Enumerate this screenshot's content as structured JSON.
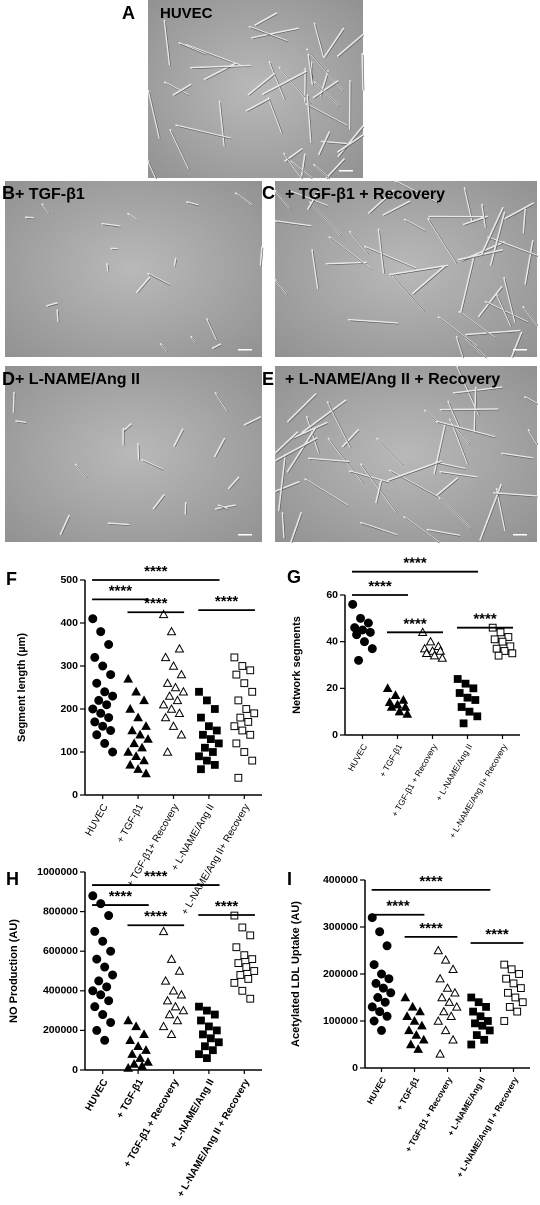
{
  "panels": [
    {
      "letter": "A",
      "caption": "HUVEC"
    },
    {
      "letter": "B",
      "caption": "+ TGF-β1"
    },
    {
      "letter": "C",
      "caption": "+ TGF-β1 + Recovery"
    },
    {
      "letter": "D",
      "caption": "+ L-NAME/Ang II"
    },
    {
      "letter": "E",
      "caption": "+ L-NAME/Ang II + Recovery"
    }
  ],
  "chart_data": [
    {
      "type": "strip",
      "letter": "F",
      "y_label": "Segment length (µm)",
      "color": "#000000",
      "categories": [
        "HUVEC",
        "+ TGF-β1",
        "+ TGF-β1+ Recovery",
        "+ L-NAME/Ang II",
        "+ L-NAME/Ang II+ Recovery"
      ],
      "markers": [
        "circle",
        "triangle",
        "triangle-open",
        "square",
        "square-open"
      ],
      "values": [
        [
          410,
          380,
          350,
          320,
          300,
          280,
          260,
          240,
          230,
          220,
          210,
          200,
          190,
          180,
          170,
          160,
          150,
          140,
          120,
          100
        ],
        [
          270,
          240,
          220,
          200,
          180,
          160,
          150,
          140,
          130,
          120,
          110,
          100,
          90,
          80,
          70,
          60,
          50
        ],
        [
          420,
          380,
          340,
          320,
          300,
          280,
          260,
          250,
          240,
          230,
          220,
          210,
          200,
          190,
          180,
          160,
          140,
          100
        ],
        [
          240,
          220,
          200,
          180,
          160,
          150,
          140,
          130,
          120,
          110,
          100,
          90,
          80,
          70,
          60
        ],
        [
          320,
          300,
          290,
          280,
          260,
          240,
          220,
          200,
          190,
          180,
          170,
          160,
          150,
          140,
          120,
          100,
          80,
          40
        ]
      ],
      "ylim": [
        0,
        500
      ],
      "yticks": [
        0,
        100,
        200,
        300,
        400,
        500
      ],
      "annotations": [
        {
          "text": "****",
          "from": 0,
          "to": 3,
          "y": 500
        },
        {
          "text": "****",
          "from": 0,
          "to": 1,
          "y": 455
        },
        {
          "text": "****",
          "from": 1,
          "to": 2,
          "y": 425
        },
        {
          "text": "****",
          "from": 3,
          "to": 4,
          "y": 430
        }
      ]
    },
    {
      "type": "strip",
      "letter": "G",
      "y_label": "Network segments",
      "color": "#000000",
      "categories": [
        "HUVEC",
        "+ TGF-β1",
        "+ TGF-β1 + Recovery",
        "+ L-NAME/Ang II",
        "+ L-NAME/Ang II+ Recovery"
      ],
      "markers": [
        "circle",
        "triangle",
        "triangle-open",
        "square",
        "square-open"
      ],
      "values": [
        [
          56,
          50,
          48,
          46,
          45,
          44,
          43,
          40,
          37,
          32
        ],
        [
          20,
          17,
          15,
          14,
          13,
          12,
          12,
          10,
          9
        ],
        [
          44,
          40,
          38,
          37,
          36,
          36,
          35,
          34,
          33
        ],
        [
          24,
          22,
          20,
          18,
          16,
          15,
          12,
          10,
          8,
          5
        ],
        [
          46,
          44,
          42,
          41,
          40,
          38,
          37,
          36,
          35,
          34
        ]
      ],
      "ylim": [
        0,
        60
      ],
      "yticks": [
        0,
        20,
        40,
        60
      ],
      "annotations": [
        {
          "text": "****",
          "from": 0,
          "to": 3,
          "y": 70
        },
        {
          "text": "****",
          "from": 0,
          "to": 1,
          "y": 60
        },
        {
          "text": "****",
          "from": 1,
          "to": 2,
          "y": 44
        },
        {
          "text": "****",
          "from": 3,
          "to": 4,
          "y": 46
        }
      ]
    },
    {
      "type": "strip",
      "letter": "H",
      "y_label": "NO Production (AU)",
      "color": "#000000",
      "categories": [
        "HUVEC",
        "+ TGF-β1",
        "+ TGF-β1 + Recovery",
        "+ L-NAME/Ang II",
        "+ L-NAME/Ang II + Recovery"
      ],
      "markers": [
        "circle",
        "triangle",
        "triangle-open",
        "square",
        "square-open"
      ],
      "values": [
        [
          880000,
          840000,
          780000,
          700000,
          650000,
          600000,
          560000,
          520000,
          480000,
          450000,
          420000,
          400000,
          380000,
          350000,
          320000,
          280000,
          240000,
          200000,
          150000
        ],
        [
          250000,
          220000,
          180000,
          150000,
          120000,
          100000,
          80000,
          60000,
          40000,
          30000,
          20000,
          10000
        ],
        [
          700000,
          560000,
          500000,
          450000,
          400000,
          380000,
          350000,
          320000,
          300000,
          280000,
          250000,
          220000,
          180000
        ],
        [
          320000,
          300000,
          280000,
          250000,
          220000,
          200000,
          180000,
          160000,
          140000,
          120000,
          100000,
          80000,
          60000
        ],
        [
          780000,
          720000,
          680000,
          620000,
          580000,
          560000,
          540000,
          520000,
          500000,
          480000,
          460000,
          440000,
          400000,
          360000
        ]
      ],
      "ylim": [
        0,
        1000000
      ],
      "yticks": [
        0,
        200000,
        400000,
        600000,
        800000,
        1000000
      ],
      "annotations": [
        {
          "text": "****",
          "from": 0,
          "to": 3,
          "y": 934000
        },
        {
          "text": "****",
          "from": 0,
          "to": 1,
          "y": 833000
        },
        {
          "text": "****",
          "from": 1,
          "to": 2,
          "y": 731000
        },
        {
          "text": "****",
          "from": 3,
          "to": 4,
          "y": 783000
        }
      ]
    },
    {
      "type": "strip",
      "letter": "I",
      "y_label": "Acetylated LDL Uptake (AU)",
      "color": "#000000",
      "categories": [
        "HUVEC",
        "+ TGF-β1",
        "+ TGF-β1 + Recovery",
        "+ L-NAME/Ang II",
        "+ L-NAME/Ang II + Recovery"
      ],
      "markers": [
        "circle",
        "triangle",
        "triangle-open",
        "square",
        "square-open"
      ],
      "values": [
        [
          320000,
          290000,
          260000,
          220000,
          200000,
          190000,
          180000,
          170000,
          160000,
          150000,
          140000,
          130000,
          120000,
          110000,
          100000,
          80000
        ],
        [
          150000,
          130000,
          120000,
          110000,
          100000,
          90000,
          80000,
          70000,
          60000,
          50000,
          40000
        ],
        [
          250000,
          230000,
          210000,
          190000,
          170000,
          160000,
          150000,
          140000,
          130000,
          120000,
          110000,
          100000,
          80000,
          60000,
          30000
        ],
        [
          150000,
          140000,
          130000,
          120000,
          110000,
          100000,
          95000,
          90000,
          80000,
          70000,
          60000,
          50000
        ],
        [
          220000,
          210000,
          200000,
          190000,
          180000,
          170000,
          160000,
          150000,
          140000,
          130000,
          120000,
          100000
        ]
      ],
      "ylim": [
        0,
        400000
      ],
      "yticks": [
        0,
        100000,
        200000,
        300000,
        400000
      ],
      "annotations": [
        {
          "text": "****",
          "from": 0,
          "to": 3,
          "y": 379000
        },
        {
          "text": "****",
          "from": 0,
          "to": 1,
          "y": 326000
        },
        {
          "text": "****",
          "from": 1,
          "to": 2,
          "y": 279000
        },
        {
          "text": "****",
          "from": 3,
          "to": 4,
          "y": 266000
        }
      ]
    }
  ]
}
